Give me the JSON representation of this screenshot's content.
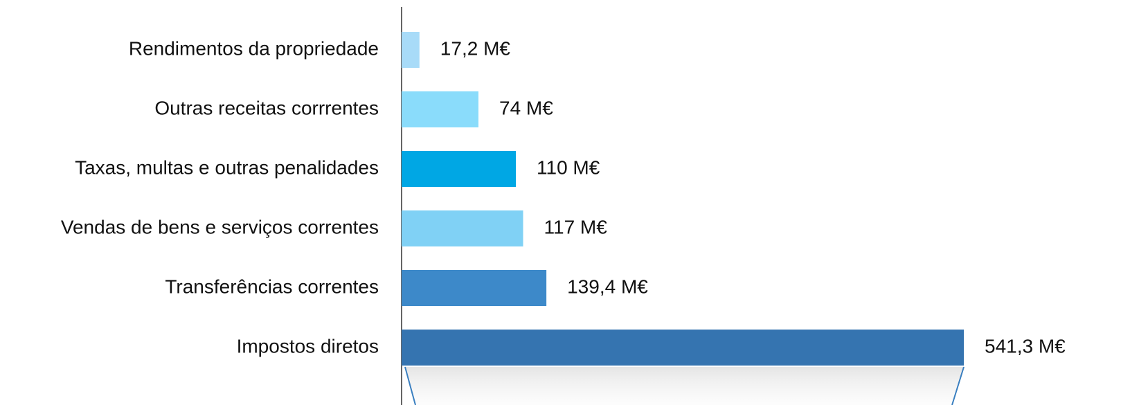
{
  "chart_data": {
    "type": "bar",
    "orientation": "horizontal",
    "categories": [
      "Rendimentos da propriedade",
      "Outras receitas corrrentes",
      "Taxas, multas e outras penalidades",
      "Vendas de bens e serviços correntes",
      "Transferências correntes",
      "Impostos diretos"
    ],
    "values": [
      17.2,
      74,
      110,
      117,
      139.4,
      541.3
    ],
    "value_labels": [
      "17,2 M€",
      "74 M€",
      "110 M€",
      "117 M€",
      "139,4 M€",
      "541,3 M€"
    ],
    "colors": [
      "#a8dbf8",
      "#8adcfb",
      "#00a7e4",
      "#80d1f5",
      "#3d89c9",
      "#3574b0"
    ]
  }
}
